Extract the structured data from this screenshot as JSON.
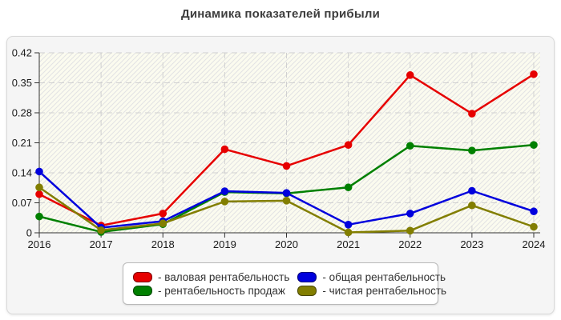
{
  "page": {
    "title": "Динамика показателей прибыли"
  },
  "chart_data": {
    "type": "line",
    "title": "Динамика показателей прибыли",
    "x": [
      2016,
      2017,
      2018,
      2019,
      2020,
      2021,
      2022,
      2023,
      2024
    ],
    "series": [
      {
        "name": "валовая рентабельность",
        "legend_label": "- валовая рентабельность",
        "color": "#e60000",
        "values": [
          0.09,
          0.017,
          0.045,
          0.195,
          0.156,
          0.205,
          0.368,
          0.278,
          0.37
        ]
      },
      {
        "name": "рентабельность продаж",
        "legend_label": "- рентабельность продаж",
        "color": "#008000",
        "values": [
          0.038,
          0.002,
          0.02,
          0.095,
          0.092,
          0.106,
          0.203,
          0.192,
          0.205
        ]
      },
      {
        "name": "общая рентабельность",
        "legend_label": "- общая рентабельность",
        "color": "#0000dd",
        "values": [
          0.143,
          0.012,
          0.027,
          0.097,
          0.093,
          0.019,
          0.045,
          0.098,
          0.05
        ]
      },
      {
        "name": "чистая рентабельность",
        "legend_label": "- чистая рентабельность",
        "color": "#827e00",
        "values": [
          0.106,
          0.006,
          0.022,
          0.073,
          0.075,
          0.001,
          0.005,
          0.064,
          0.014
        ]
      }
    ],
    "legend_order": [
      0,
      2,
      1,
      3
    ],
    "yticks": [
      0,
      0.07,
      0.14,
      0.21,
      0.28,
      0.35,
      0.42
    ],
    "ytick_labels": [
      "0",
      "0.07",
      "0.14",
      "0.21",
      "0.28",
      "0.35",
      "0.42"
    ],
    "ylim": [
      0,
      0.42
    ],
    "grid": true,
    "legend_position": "bottom",
    "style": {
      "plot_bg": "#fbfbef",
      "hatch_color": "#e3e3e3",
      "grid_color": "#d0d0d0",
      "axis_color": "#333333"
    }
  }
}
